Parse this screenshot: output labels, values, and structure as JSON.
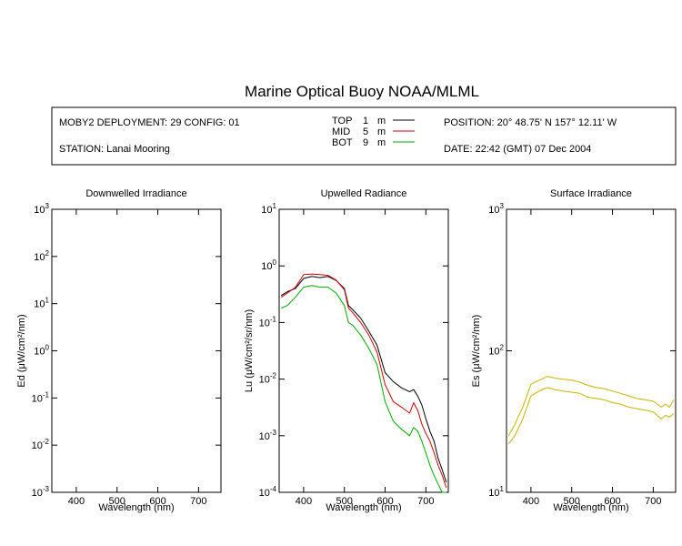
{
  "header": {
    "title": "Marine Optical Buoy NOAA/MLML",
    "deployment": "MOBY2 DEPLOYMENT: 29 CONFIG: 01",
    "station": "STATION: Lanai Mooring",
    "position": "POSITION: 20° 48.75' N   157° 12.11' W",
    "date": "DATE: 22:42 (GMT) 07 Dec 2004",
    "depth_unit": "m",
    "legend": [
      {
        "label": "TOP",
        "depth": "1",
        "color": "#000000"
      },
      {
        "label": "MID",
        "depth": "5",
        "color": "#cc0000"
      },
      {
        "label": "BOT",
        "depth": "9",
        "color": "#00aa00"
      }
    ]
  },
  "colors": {
    "surface": "#c8b400"
  },
  "chart_data": [
    {
      "type": "line",
      "title": "Downwelled Irradiance",
      "xlabel": "Wavelength (nm)",
      "ylabel": "Ed  (μW/cm²/nm)",
      "xlim": [
        340,
        755
      ],
      "xticks": [
        400,
        500,
        600,
        700
      ],
      "yscale": "log",
      "ylim": [
        0.001,
        1000
      ],
      "yticks": [
        {
          "base": "10",
          "exp": "-3",
          "value": 0.001
        },
        {
          "base": "10",
          "exp": "-2",
          "value": 0.01
        },
        {
          "base": "10",
          "exp": "-1",
          "value": 0.1
        },
        {
          "base": "10",
          "exp": "0",
          "value": 1
        },
        {
          "base": "10",
          "exp": "1",
          "value": 10
        },
        {
          "base": "10",
          "exp": "2",
          "value": 100
        },
        {
          "base": "10",
          "exp": "3",
          "value": 1000
        }
      ],
      "series": []
    },
    {
      "type": "line",
      "title": "Upwelled Radiance",
      "xlabel": "Wavelength (nm)",
      "ylabel": "Lu  (μW/cm²/sr/nm)",
      "xlim": [
        340,
        755
      ],
      "xticks": [
        400,
        500,
        600,
        700
      ],
      "yscale": "log",
      "ylim": [
        0.0001,
        10
      ],
      "yticks": [
        {
          "base": "10",
          "exp": "-4",
          "value": 0.0001
        },
        {
          "base": "10",
          "exp": "-3",
          "value": 0.001
        },
        {
          "base": "10",
          "exp": "-2",
          "value": 0.01
        },
        {
          "base": "10",
          "exp": "-1",
          "value": 0.1
        },
        {
          "base": "10",
          "exp": "0",
          "value": 1
        },
        {
          "base": "10",
          "exp": "1",
          "value": 10
        }
      ],
      "series": [
        {
          "name": "TOP",
          "color": "#000000",
          "x": [
            345,
            360,
            380,
            400,
            420,
            440,
            460,
            480,
            500,
            510,
            520,
            540,
            560,
            580,
            600,
            620,
            640,
            660,
            670,
            680,
            690,
            700,
            710,
            720,
            730,
            740,
            750
          ],
          "y": [
            0.3,
            0.35,
            0.4,
            0.6,
            0.65,
            0.62,
            0.65,
            0.55,
            0.4,
            0.2,
            0.17,
            0.12,
            0.07,
            0.04,
            0.013,
            0.009,
            0.007,
            0.006,
            0.0065,
            0.005,
            0.0035,
            0.002,
            0.0012,
            0.0008,
            0.0004,
            0.00025,
            0.00015
          ]
        },
        {
          "name": "MID",
          "color": "#cc0000",
          "x": [
            345,
            360,
            380,
            400,
            420,
            440,
            460,
            480,
            500,
            510,
            520,
            540,
            560,
            580,
            600,
            620,
            640,
            660,
            670,
            680,
            690,
            700,
            710,
            720,
            730,
            740,
            750
          ],
          "y": [
            0.28,
            0.33,
            0.42,
            0.7,
            0.72,
            0.7,
            0.68,
            0.56,
            0.38,
            0.18,
            0.15,
            0.1,
            0.06,
            0.03,
            0.008,
            0.004,
            0.0032,
            0.0025,
            0.0038,
            0.0028,
            0.0016,
            0.0011,
            0.0008,
            0.0005,
            0.0003,
            0.0002,
            0.00012
          ]
        },
        {
          "name": "BOT",
          "color": "#00aa00",
          "x": [
            345,
            360,
            380,
            400,
            420,
            440,
            460,
            480,
            500,
            510,
            520,
            540,
            560,
            580,
            600,
            620,
            640,
            660,
            670,
            680,
            690,
            700,
            710,
            720,
            730,
            740,
            750
          ],
          "y": [
            0.18,
            0.2,
            0.28,
            0.42,
            0.45,
            0.42,
            0.42,
            0.33,
            0.2,
            0.1,
            0.09,
            0.06,
            0.035,
            0.018,
            0.004,
            0.0018,
            0.0013,
            0.001,
            0.0014,
            0.0012,
            0.0008,
            0.0005,
            0.0003,
            0.0002,
            0.00014,
            0.0001,
            0.0001
          ]
        }
      ]
    },
    {
      "type": "line",
      "title": "Surface Irradiance",
      "xlabel": "Wavelength (nm)",
      "ylabel": "Es  (μW/cm²/nm)",
      "xlim": [
        340,
        755
      ],
      "xticks": [
        400,
        500,
        600,
        700
      ],
      "yscale": "log",
      "ylim": [
        10,
        1000
      ],
      "yticks": [
        {
          "base": "10",
          "exp": "1",
          "value": 10
        },
        {
          "base": "10",
          "exp": "2",
          "value": 100
        },
        {
          "base": "10",
          "exp": "3",
          "value": 1000
        }
      ],
      "series": [
        {
          "name": "",
          "color": "#c8b400",
          "x": [
            345,
            360,
            380,
            400,
            420,
            440,
            460,
            480,
            500,
            520,
            540,
            560,
            580,
            600,
            620,
            640,
            660,
            680,
            700,
            720,
            730,
            740,
            750
          ],
          "y": [
            25,
            30,
            40,
            58,
            62,
            66,
            64,
            63,
            62,
            60,
            57,
            55,
            54,
            52,
            50,
            48,
            46,
            45,
            44,
            40,
            42,
            40,
            45
          ]
        },
        {
          "name": "",
          "color": "#c8b400",
          "x": [
            345,
            360,
            380,
            400,
            420,
            440,
            460,
            480,
            500,
            520,
            540,
            560,
            580,
            600,
            620,
            640,
            660,
            680,
            700,
            720,
            730,
            740,
            750
          ],
          "y": [
            22,
            25,
            33,
            48,
            52,
            55,
            53,
            52,
            51,
            50,
            47,
            46,
            45,
            43,
            42,
            40,
            39,
            38,
            37,
            33,
            35,
            34,
            36
          ]
        }
      ]
    }
  ]
}
